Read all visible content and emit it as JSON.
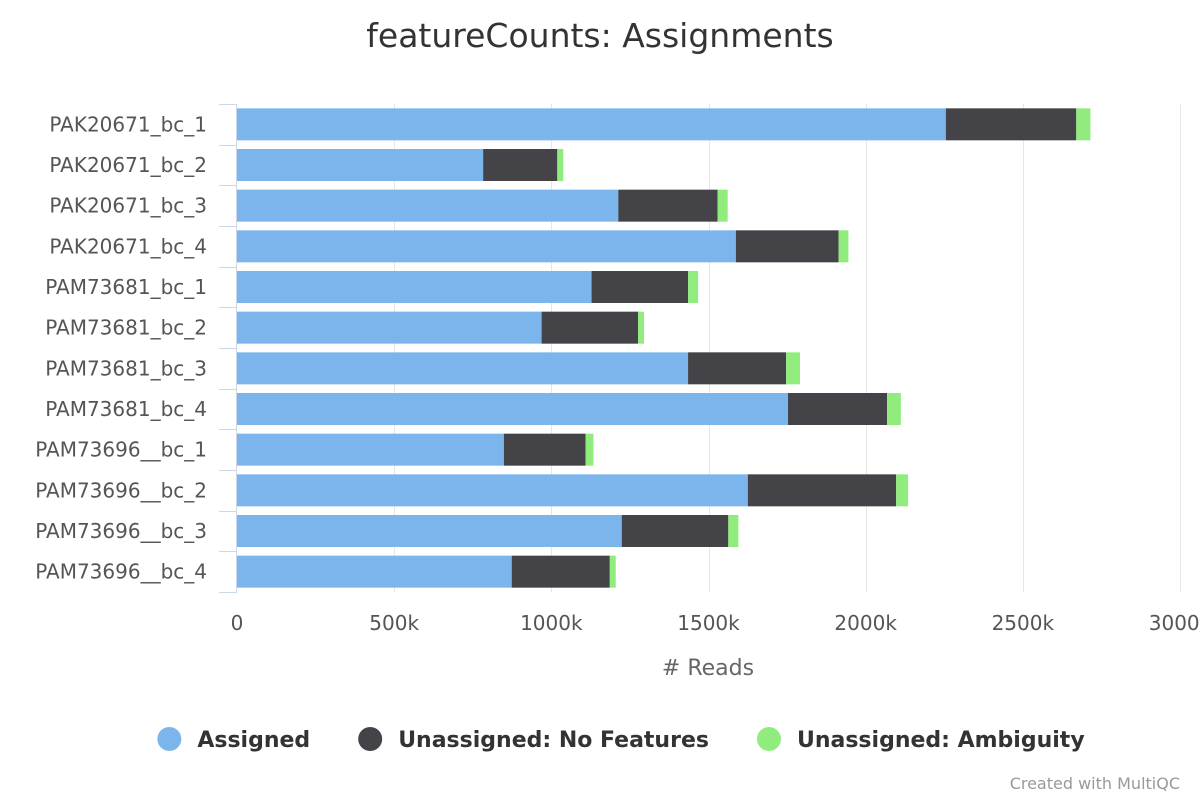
{
  "chart_data": {
    "type": "bar",
    "orientation": "horizontal",
    "stacked": true,
    "title": "featureCounts: Assignments",
    "xlabel": "# Reads",
    "ylabel": "",
    "xlim": [
      0,
      3000000
    ],
    "x_ticks": [
      0,
      500000,
      1000000,
      1500000,
      2000000,
      2500000,
      3000000
    ],
    "x_tick_labels": [
      "0",
      "500k",
      "1000k",
      "1500k",
      "2000k",
      "2500k",
      "3000k"
    ],
    "grid": true,
    "legend_position": "bottom",
    "categories": [
      "PAK20671_bc_1",
      "PAK20671_bc_2",
      "PAK20671_bc_3",
      "PAK20671_bc_4",
      "PAM73681_bc_1",
      "PAM73681_bc_2",
      "PAM73681_bc_3",
      "PAM73681_bc_4",
      "PAM73696__bc_1",
      "PAM73696__bc_2",
      "PAM73696__bc_3",
      "PAM73696__bc_4"
    ],
    "series": [
      {
        "name": "Assigned",
        "color": "#7cb5ec",
        "values": [
          2255000,
          783000,
          1213000,
          1587000,
          1128000,
          969000,
          1435000,
          1753000,
          849000,
          1625000,
          1224000,
          874000
        ]
      },
      {
        "name": "Unassigned: No Features",
        "color": "#434348",
        "values": [
          415000,
          236000,
          316000,
          327000,
          307000,
          307000,
          312000,
          315000,
          260000,
          472000,
          339000,
          312000
        ]
      },
      {
        "name": "Unassigned: Ambiguity",
        "color": "#90ed7d",
        "values": [
          45000,
          19000,
          32000,
          31000,
          32000,
          19000,
          44000,
          44000,
          25000,
          38000,
          32000,
          19000
        ]
      }
    ],
    "credit": "Created with MultiQC"
  }
}
